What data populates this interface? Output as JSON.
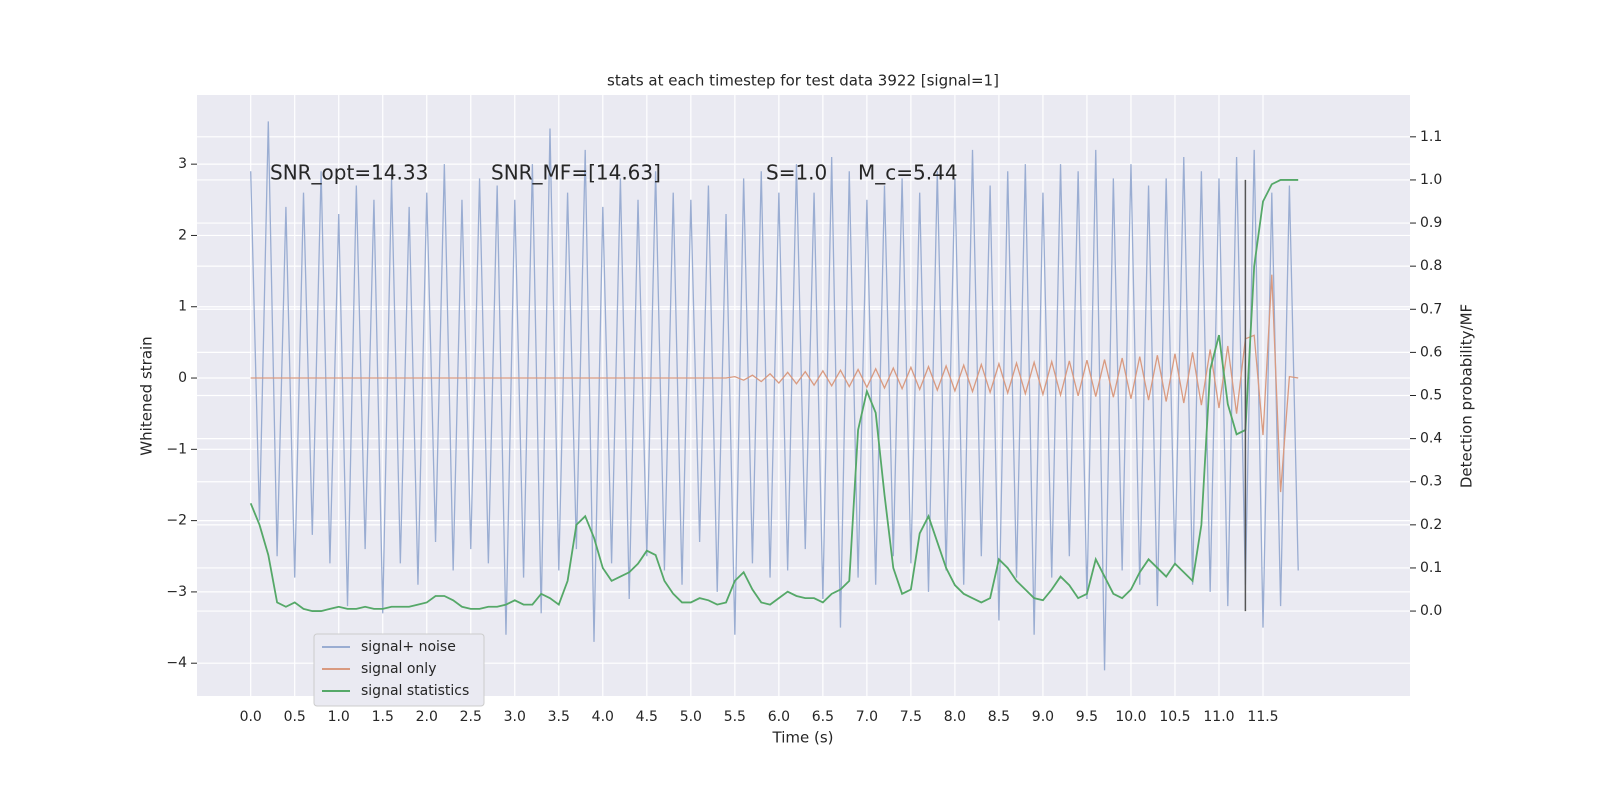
{
  "chart_data": {
    "type": "line",
    "title": "stats at each timestep for test data 3922 [signal=1]",
    "xlabel": "Time (s)",
    "ylabel": "Whitened strain",
    "y2label": "Detection probability/MF",
    "annotations": [
      "SNR_opt=14.33",
      "SNR_MF=[14.63]",
      "S=1.0",
      "M_c=5.44"
    ],
    "x": [
      0.0,
      0.1,
      0.2,
      0.3,
      0.4,
      0.5,
      0.6,
      0.7,
      0.8,
      0.9,
      1.0,
      1.1,
      1.2,
      1.3,
      1.4,
      1.5,
      1.6,
      1.7,
      1.8,
      1.9,
      2.0,
      2.1,
      2.2,
      2.3,
      2.4,
      2.5,
      2.6,
      2.7,
      2.8,
      2.9,
      3.0,
      3.1,
      3.2,
      3.3,
      3.4,
      3.5,
      3.6,
      3.7,
      3.8,
      3.9,
      4.0,
      4.1,
      4.2,
      4.3,
      4.4,
      4.5,
      4.6,
      4.7,
      4.8,
      4.9,
      5.0,
      5.1,
      5.2,
      5.3,
      5.4,
      5.5,
      5.6,
      5.7,
      5.8,
      5.9,
      6.0,
      6.1,
      6.2,
      6.3,
      6.4,
      6.5,
      6.6,
      6.7,
      6.8,
      6.9,
      7.0,
      7.1,
      7.2,
      7.3,
      7.4,
      7.5,
      7.6,
      7.7,
      7.8,
      7.9,
      8.0,
      8.1,
      8.2,
      8.3,
      8.4,
      8.5,
      8.6,
      8.7,
      8.8,
      8.9,
      9.0,
      9.1,
      9.2,
      9.3,
      9.4,
      9.5,
      9.6,
      9.7,
      9.8,
      9.9,
      10.0,
      10.1,
      10.2,
      10.3,
      10.4,
      10.5,
      10.6,
      10.7,
      10.8,
      10.9,
      11.0,
      11.1,
      11.2,
      11.3,
      11.4,
      11.5,
      11.6,
      11.7,
      11.8,
      11.9
    ],
    "series": [
      {
        "name": "signal+ noise",
        "color": "#9aadd2",
        "values": [
          2.9,
          -2.0,
          3.6,
          -2.5,
          2.4,
          -2.8,
          2.6,
          -2.2,
          2.9,
          -2.6,
          2.3,
          -3.2,
          2.7,
          -2.4,
          2.5,
          -3.3,
          2.8,
          -2.6,
          2.4,
          -2.9,
          2.6,
          -2.3,
          3.0,
          -2.7,
          2.5,
          -2.4,
          2.8,
          -2.6,
          2.7,
          -3.6,
          2.5,
          -2.8,
          3.0,
          -3.3,
          3.5,
          -2.7,
          2.6,
          -2.4,
          3.2,
          -3.7,
          2.4,
          -2.6,
          2.8,
          -3.1,
          2.5,
          -2.5,
          2.9,
          -2.7,
          2.6,
          -2.9,
          2.5,
          -2.3,
          2.7,
          -3.0,
          2.3,
          -3.6,
          2.8,
          -2.6,
          2.9,
          -2.8,
          2.6,
          -2.7,
          3.0,
          -2.4,
          2.6,
          -3.1,
          3.1,
          -3.5,
          2.9,
          -2.8,
          2.5,
          -2.9,
          2.7,
          -2.5,
          2.8,
          -2.6,
          2.6,
          -3.0,
          2.9,
          -2.7,
          2.8,
          -2.9,
          3.2,
          -2.5,
          2.7,
          -3.4,
          2.9,
          -2.8,
          3.0,
          -3.6,
          2.6,
          -2.8,
          3.0,
          -2.5,
          2.9,
          -3.1,
          3.2,
          -4.1,
          2.8,
          -2.7,
          3.0,
          -2.9,
          2.7,
          -3.2,
          2.8,
          -2.6,
          3.1,
          -2.9,
          2.9,
          -3.0,
          2.8,
          -3.2,
          3.1,
          -2.9,
          3.2,
          -3.5,
          2.6,
          -3.2,
          2.7,
          -2.7
        ]
      },
      {
        "name": "signal only",
        "color": "#d99a80",
        "values": [
          0,
          0,
          0,
          0,
          0,
          0,
          0,
          0,
          0,
          0,
          0,
          0,
          0,
          0,
          0,
          0,
          0,
          0,
          0,
          0,
          0,
          0,
          0,
          0,
          0,
          0,
          0,
          0,
          0,
          0,
          0,
          0,
          0,
          0,
          0,
          0,
          0,
          0,
          0,
          0,
          0,
          0,
          0,
          0,
          0,
          0,
          0,
          0,
          0,
          0,
          0,
          0,
          0,
          0,
          0,
          0.02,
          -0.03,
          0.04,
          -0.05,
          0.06,
          -0.07,
          0.08,
          -0.08,
          0.09,
          -0.1,
          0.1,
          -0.11,
          0.11,
          -0.12,
          0.12,
          -0.13,
          0.13,
          -0.14,
          0.14,
          -0.15,
          0.15,
          -0.16,
          0.16,
          -0.17,
          0.17,
          -0.18,
          0.18,
          -0.19,
          0.19,
          -0.2,
          0.2,
          -0.21,
          0.21,
          -0.22,
          0.22,
          -0.23,
          0.23,
          -0.24,
          0.24,
          -0.25,
          0.25,
          -0.26,
          0.26,
          -0.27,
          0.28,
          -0.29,
          0.3,
          -0.31,
          0.32,
          -0.33,
          0.34,
          -0.35,
          0.36,
          -0.38,
          0.4,
          -0.42,
          0.45,
          -0.5,
          0.55,
          0.6,
          -0.8,
          1.45,
          -1.6,
          0.02,
          0
        ]
      },
      {
        "name": "signal statistics",
        "color": "#55a868",
        "axis": "y2",
        "values": [
          0.25,
          0.2,
          0.13,
          0.02,
          0.01,
          0.02,
          0.005,
          0.0,
          0.0,
          0.005,
          0.01,
          0.005,
          0.005,
          0.01,
          0.005,
          0.005,
          0.01,
          0.01,
          0.01,
          0.015,
          0.02,
          0.035,
          0.035,
          0.025,
          0.01,
          0.005,
          0.005,
          0.01,
          0.01,
          0.015,
          0.025,
          0.015,
          0.015,
          0.04,
          0.03,
          0.015,
          0.07,
          0.2,
          0.22,
          0.17,
          0.1,
          0.07,
          0.08,
          0.09,
          0.11,
          0.14,
          0.13,
          0.07,
          0.04,
          0.02,
          0.02,
          0.03,
          0.025,
          0.015,
          0.02,
          0.07,
          0.09,
          0.05,
          0.02,
          0.015,
          0.03,
          0.045,
          0.035,
          0.03,
          0.03,
          0.02,
          0.04,
          0.05,
          0.07,
          0.42,
          0.51,
          0.46,
          0.27,
          0.1,
          0.04,
          0.05,
          0.18,
          0.22,
          0.16,
          0.1,
          0.06,
          0.04,
          0.03,
          0.02,
          0.03,
          0.12,
          0.1,
          0.07,
          0.05,
          0.03,
          0.025,
          0.05,
          0.08,
          0.06,
          0.03,
          0.04,
          0.12,
          0.08,
          0.04,
          0.03,
          0.05,
          0.09,
          0.12,
          0.1,
          0.08,
          0.11,
          0.09,
          0.07,
          0.2,
          0.56,
          0.64,
          0.48,
          0.41,
          0.42,
          0.8,
          0.95,
          0.99,
          1.0,
          1.0,
          1.0
        ]
      }
    ],
    "vline": 11.3,
    "vline_color": "#555555",
    "xlim": [
      -0.61,
      13.17
    ],
    "xticks": [
      {
        "value": 0,
        "label": "0.0"
      },
      0.5,
      {
        "value": 1,
        "label": "1.0"
      },
      1.5,
      {
        "value": 2,
        "label": "2.0"
      },
      2.5,
      {
        "value": 3,
        "label": "3.0"
      },
      3.5,
      {
        "value": 4,
        "label": "4.0"
      },
      4.5,
      {
        "value": 5,
        "label": "5.0"
      },
      5.5,
      {
        "value": 6,
        "label": "6.0"
      },
      6.5,
      {
        "value": 7,
        "label": "7.0"
      },
      7.5,
      {
        "value": 8,
        "label": "8.0"
      },
      8.5,
      {
        "value": 9,
        "label": "9.0"
      },
      9.5,
      {
        "value": 10,
        "label": "10.0"
      },
      10.5,
      {
        "value": 11,
        "label": "11.0"
      },
      11.5
    ],
    "ylim": [
      -4.46,
      3.97
    ],
    "yticks": [
      {
        "value": -4,
        "label": "−4"
      },
      {
        "value": -3,
        "label": "−3"
      },
      {
        "value": -2,
        "label": "−2"
      },
      {
        "value": -1,
        "label": "−1"
      },
      0,
      1,
      2,
      3
    ],
    "y2lim": [
      -0.197,
      1.197
    ],
    "y2ticks": [
      {
        "value": 0,
        "label": "0.0"
      },
      0.1,
      0.2,
      0.3,
      0.4,
      0.5,
      0.6,
      0.7,
      0.8,
      0.9,
      {
        "value": 1,
        "label": "1.0"
      },
      1.1
    ],
    "grid": true,
    "legend": "lower left"
  }
}
